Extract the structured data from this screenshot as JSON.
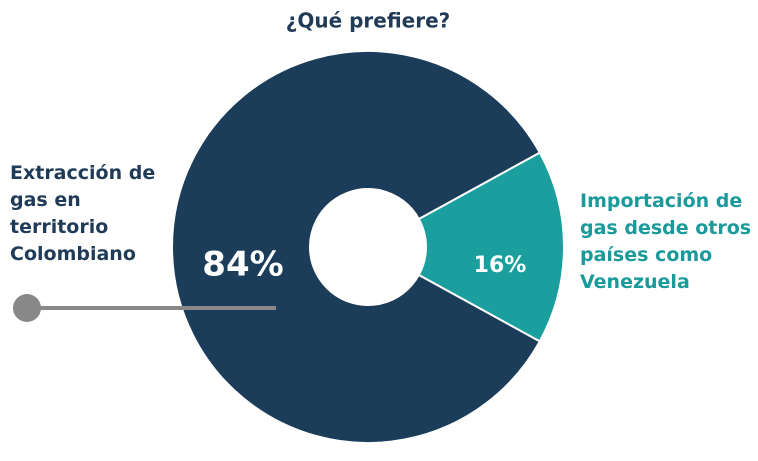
{
  "chart_data": {
    "type": "donut",
    "title": "¿Qué prefiere?",
    "categories": [
      "Extracción de gas en territorio Colombiano",
      "Importación de gas desde otros países como Venezuela"
    ],
    "values": [
      84,
      16
    ],
    "value_labels": [
      "84%",
      "16%"
    ],
    "colors": [
      "#1c3d5a",
      "#1a9e9e"
    ]
  }
}
